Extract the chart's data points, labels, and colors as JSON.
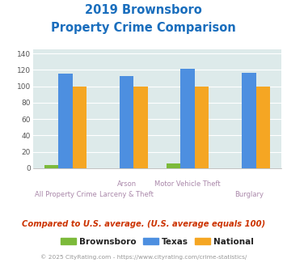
{
  "title_line1": "2019 Brownsboro",
  "title_line2": "Property Crime Comparison",
  "cat_labels_top": [
    "",
    "Arson",
    "Motor Vehicle Theft",
    ""
  ],
  "cat_labels_bottom": [
    "All Property Crime",
    "Larceny & Theft",
    "",
    "Burglary"
  ],
  "brownsboro_vals": [
    4,
    0,
    6,
    0
  ],
  "texas_vals": [
    115,
    112,
    121,
    116
  ],
  "national_vals": [
    100,
    100,
    100,
    100
  ],
  "color_brownsboro": "#7cba3a",
  "color_texas": "#4d8fe0",
  "color_national": "#f5a623",
  "background_color": "#ddeaea",
  "ylim": [
    0,
    145
  ],
  "yticks": [
    0,
    20,
    40,
    60,
    80,
    100,
    120,
    140
  ],
  "subtitle": "Compared to U.S. average. (U.S. average equals 100)",
  "footer": "© 2025 CityRating.com - https://www.cityrating.com/crime-statistics/",
  "legend_labels": [
    "Brownsboro",
    "Texas",
    "National"
  ],
  "title_color": "#1a6ebd",
  "subtitle_color": "#cc3300",
  "footer_color": "#999999",
  "xlabel_color": "#aa88aa"
}
